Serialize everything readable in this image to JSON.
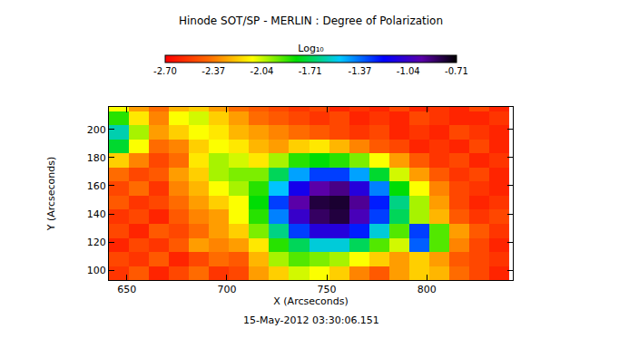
{
  "chart_data": {
    "type": "heatmap",
    "title": "Hinode SOT/SP - MERLIN : Degree of Polarization",
    "x_label": "X (Arcseconds)",
    "y_label": "Y (Arcseconds)",
    "annotation": "15-May-2012 03:30:06.151",
    "grid": false,
    "xlim": [
      641,
      843
    ],
    "ylim": [
      93,
      216
    ],
    "xticks": [
      650,
      700,
      750,
      800
    ],
    "yticks": [
      100,
      120,
      140,
      160,
      180,
      200
    ],
    "x": [
      646,
      656,
      666,
      676,
      686,
      696,
      706,
      716,
      726,
      736,
      746,
      756,
      766,
      776,
      786,
      796,
      806,
      816,
      826,
      836
    ],
    "y": [
      98,
      108,
      118,
      128,
      138,
      148,
      158,
      168,
      178,
      188,
      198,
      208,
      218
    ],
    "z": [
      [
        -2.55,
        -2.45,
        -2.6,
        -2.5,
        -2.4,
        -2.55,
        -2.5,
        -2.3,
        -2.2,
        -2.05,
        -2.1,
        -2.2,
        -2.35,
        -2.45,
        -2.3,
        -2.2,
        -2.25,
        -2.4,
        -2.5,
        -2.6
      ],
      [
        -2.5,
        -2.55,
        -2.45,
        -2.6,
        -2.5,
        -2.4,
        -2.45,
        -2.25,
        -2.0,
        -1.9,
        -1.95,
        -2.0,
        -2.1,
        -2.2,
        -2.3,
        -2.2,
        -2.3,
        -2.45,
        -2.5,
        -2.55
      ],
      [
        -2.6,
        -2.5,
        -2.55,
        -2.45,
        -2.3,
        -2.35,
        -2.3,
        -2.15,
        -1.85,
        -1.7,
        -1.55,
        -1.55,
        -1.7,
        -1.9,
        -2.05,
        -1.35,
        -1.9,
        -2.35,
        -2.5,
        -2.6
      ],
      [
        -2.5,
        -2.6,
        -2.45,
        -2.5,
        -2.4,
        -2.3,
        -2.2,
        -1.95,
        -1.65,
        -1.3,
        -1.1,
        -1.1,
        -1.25,
        -1.55,
        -1.9,
        -1.3,
        -1.9,
        -2.3,
        -2.45,
        -2.55
      ],
      [
        -2.55,
        -2.5,
        -2.6,
        -2.45,
        -2.35,
        -2.3,
        -2.1,
        -1.85,
        -1.4,
        -1.05,
        -0.85,
        -0.8,
        -1.0,
        -1.3,
        -1.7,
        -2.0,
        -2.25,
        -2.45,
        -2.55,
        -2.5
      ],
      [
        -2.45,
        -2.55,
        -2.5,
        -2.4,
        -2.3,
        -2.2,
        -2.1,
        -1.8,
        -1.3,
        -0.95,
        -0.8,
        -0.78,
        -0.92,
        -1.25,
        -1.65,
        -2.0,
        -2.3,
        -2.5,
        -2.6,
        -2.55
      ],
      [
        -2.5,
        -2.4,
        -2.55,
        -2.35,
        -2.25,
        -2.1,
        -2.0,
        -1.85,
        -1.5,
        -1.15,
        -0.95,
        -0.9,
        -1.1,
        -1.4,
        -1.8,
        -2.1,
        -2.35,
        -2.5,
        -2.55,
        -2.6
      ],
      [
        -2.4,
        -2.5,
        -2.45,
        -2.3,
        -2.2,
        -2.0,
        -1.95,
        -1.95,
        -1.7,
        -1.45,
        -1.3,
        -1.3,
        -1.45,
        -1.75,
        -2.05,
        -2.3,
        -2.45,
        -2.55,
        -2.5,
        -2.6
      ],
      [
        -2.2,
        -2.35,
        -2.5,
        -2.4,
        -2.15,
        -2.0,
        -2.05,
        -2.15,
        -2.0,
        -1.85,
        -1.8,
        -1.85,
        -1.95,
        -2.1,
        -2.3,
        -2.45,
        -2.55,
        -2.5,
        -2.6,
        -2.55
      ],
      [
        -1.75,
        -2.1,
        -2.4,
        -2.35,
        -2.2,
        -2.1,
        -2.15,
        -2.25,
        -2.3,
        -2.2,
        -2.15,
        -2.25,
        -2.35,
        -2.45,
        -2.5,
        -2.6,
        -2.55,
        -2.6,
        -2.5,
        -2.6
      ],
      [
        -1.6,
        -2.0,
        -2.3,
        -2.2,
        -2.1,
        -2.15,
        -2.25,
        -2.3,
        -2.35,
        -2.4,
        -2.45,
        -2.5,
        -2.55,
        -2.5,
        -2.6,
        -2.55,
        -2.6,
        -2.5,
        -2.55,
        -2.6
      ],
      [
        -1.85,
        -2.15,
        -2.35,
        -2.1,
        -2.05,
        -2.2,
        -2.3,
        -2.4,
        -2.45,
        -2.5,
        -2.55,
        -2.5,
        -2.6,
        -2.55,
        -2.6,
        -2.5,
        -2.55,
        -2.6,
        -2.6,
        -2.55
      ],
      [
        -2.1,
        -2.3,
        -2.4,
        -2.25,
        -2.2,
        -2.3,
        -2.4,
        -2.45,
        -2.5,
        -2.55,
        -2.5,
        -2.6,
        -2.55,
        -2.6,
        -2.5,
        -2.6,
        -2.55,
        -2.6,
        -2.5,
        -2.6
      ]
    ],
    "colorbar": {
      "title": "Log₁₀",
      "range": [
        -2.7,
        -0.71
      ],
      "ticks": [
        {
          "value": -2.7,
          "label": "-2.70"
        },
        -2.37,
        -2.04,
        -1.71,
        -1.37,
        -1.04,
        -0.71
      ]
    }
  }
}
